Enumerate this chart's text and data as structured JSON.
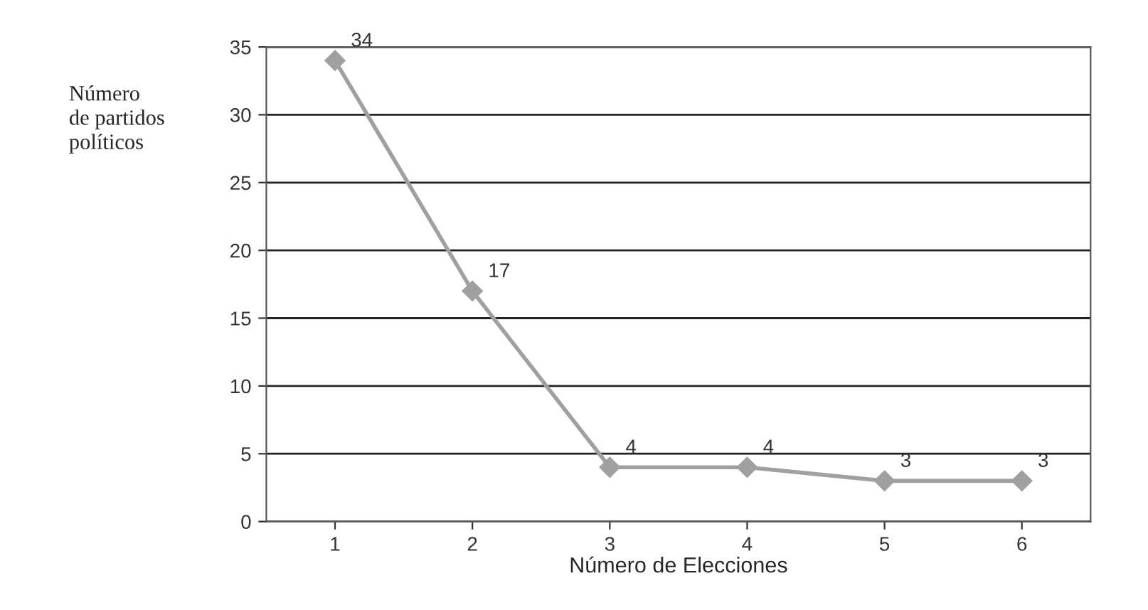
{
  "chart_data": {
    "type": "line",
    "xlabel": "Número de Elecciones",
    "ylabel": "Número\nde partidos\npolíticos",
    "categories": [
      "1",
      "2",
      "3",
      "4",
      "5",
      "6"
    ],
    "series": [
      {
        "color": "#a0a0a0",
        "values": [
          34,
          17,
          4,
          4,
          3,
          3
        ]
      }
    ],
    "ylim": [
      0,
      35
    ],
    "yticks": [
      0,
      5,
      10,
      15,
      20,
      25,
      30,
      35
    ],
    "grid": "y",
    "marker": "diamond",
    "line_style": "solid",
    "data_labels": true
  }
}
